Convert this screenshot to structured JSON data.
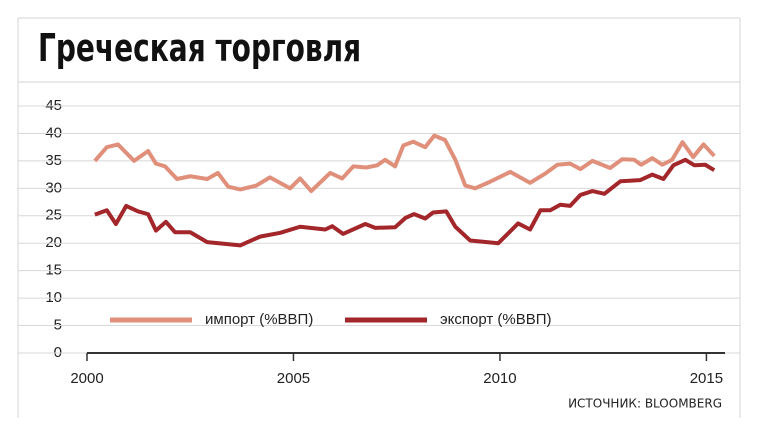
{
  "chart_data": {
    "type": "line",
    "title": "Греческая торговля",
    "source": "ИСТОЧНИК: BLOOMBERG",
    "xlim": [
      2000,
      2015.45
    ],
    "xticks": [
      2000,
      2005,
      2010,
      2015
    ],
    "ylim": [
      0,
      45
    ],
    "yticks": [
      0,
      5,
      10,
      15,
      20,
      25,
      30,
      35,
      40,
      45
    ],
    "grid": true,
    "series": [
      {
        "name": "импорт (%ВВП)",
        "color": "#e0907a",
        "x": [
          2000.19,
          2000.48,
          2000.75,
          2001.14,
          2001.48,
          2001.67,
          2001.89,
          2002.18,
          2002.5,
          2002.91,
          2003.17,
          2003.42,
          2003.71,
          2004.1,
          2004.43,
          2004.92,
          2005.16,
          2005.43,
          2005.89,
          2006.18,
          2006.45,
          2006.76,
          2007.03,
          2007.22,
          2007.46,
          2007.66,
          2007.9,
          2008.19,
          2008.41,
          2008.67,
          2008.92,
          2009.16,
          2009.4,
          2009.76,
          2010.25,
          2010.73,
          2011.1,
          2011.39,
          2011.7,
          2011.95,
          2012.24,
          2012.67,
          2012.96,
          2013.25,
          2013.42,
          2013.69,
          2013.93,
          2014.17,
          2014.42,
          2014.68,
          2014.93,
          2015.19
        ],
        "values": [
          35,
          37.5,
          38,
          35,
          36.8,
          34.5,
          34,
          31.7,
          32.2,
          31.7,
          32.8,
          30.3,
          29.8,
          30.5,
          32,
          30,
          31.8,
          29.5,
          32.8,
          31.8,
          34,
          33.8,
          34.2,
          35.2,
          34,
          37.8,
          38.5,
          37.5,
          39.6,
          38.8,
          35.2,
          30.5,
          30,
          31.2,
          33,
          31,
          32.7,
          34.3,
          34.5,
          33.5,
          35,
          33.7,
          35.3,
          35.2,
          34.3,
          35.5,
          34.3,
          35.2,
          38.4,
          35.7,
          38,
          35.9
        ]
      },
      {
        "name": "экспорт (%ВВП)",
        "color": "#a3262a",
        "x": [
          2000.19,
          2000.48,
          2000.7,
          2000.95,
          2001.24,
          2001.48,
          2001.67,
          2001.91,
          2002.13,
          2002.5,
          2002.91,
          2003.71,
          2004.19,
          2004.68,
          2005.16,
          2005.77,
          2005.94,
          2006.2,
          2006.74,
          2006.98,
          2007.46,
          2007.71,
          2007.92,
          2008.19,
          2008.38,
          2008.7,
          2008.92,
          2009.28,
          2009.96,
          2010.44,
          2010.73,
          2010.98,
          2011.22,
          2011.46,
          2011.7,
          2011.95,
          2012.24,
          2012.53,
          2012.92,
          2013.4,
          2013.69,
          2013.96,
          2014.2,
          2014.49,
          2014.71,
          2014.97,
          2015.19
        ],
        "values": [
          25.2,
          26,
          23.5,
          26.8,
          25.8,
          25.3,
          22.3,
          23.9,
          22,
          22,
          20.2,
          19.6,
          21.2,
          21.9,
          23,
          22.5,
          23.1,
          21.7,
          23.5,
          22.8,
          22.9,
          24.6,
          25.3,
          24.5,
          25.6,
          25.8,
          23,
          20.5,
          20,
          23.6,
          22.5,
          26,
          26,
          27,
          26.8,
          28.8,
          29.5,
          29,
          31.3,
          31.5,
          32.5,
          31.7,
          34.2,
          35.2,
          34.2,
          34.3,
          33.3
        ]
      }
    ]
  }
}
